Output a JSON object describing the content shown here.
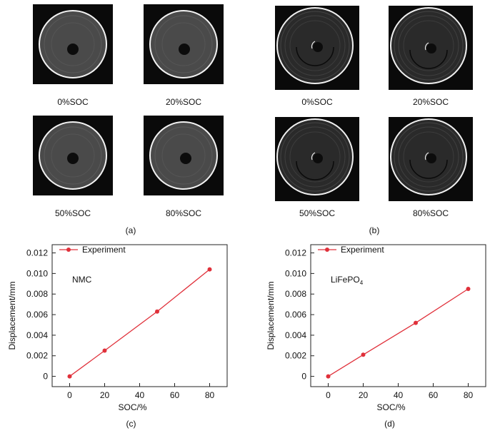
{
  "panel_a": {
    "label": "(a)",
    "images": [
      {
        "caption": "0%SOC"
      },
      {
        "caption": "20%SOC"
      },
      {
        "caption": "50%SOC"
      },
      {
        "caption": "80%SOC"
      }
    ]
  },
  "panel_b": {
    "label": "(b)",
    "images": [
      {
        "caption": "0%SOC"
      },
      {
        "caption": "20%SOC"
      },
      {
        "caption": "50%SOC"
      },
      {
        "caption": "80%SOC"
      }
    ]
  },
  "chart_data": [
    {
      "panel_label": "(c)",
      "type": "line",
      "annotation": "NMC",
      "xlabel": "SOC/%",
      "ylabel": "Displacement/mm",
      "xlim": [
        -10,
        90
      ],
      "ylim": [
        -0.001,
        0.0128
      ],
      "xticks": [
        0,
        20,
        40,
        60,
        80
      ],
      "yticks": [
        0,
        0.002,
        0.004,
        0.006,
        0.008,
        0.01,
        0.012
      ],
      "ytick_labels": [
        "0",
        "0.002",
        "0.004",
        "0.006",
        "0.008",
        "0.010",
        "0.012"
      ],
      "legend": "top-left",
      "series": [
        {
          "name": "Experiment",
          "color": "#e0303a",
          "x": [
            0,
            20,
            50,
            80
          ],
          "y": [
            0.0,
            0.0025,
            0.0063,
            0.0104
          ]
        }
      ]
    },
    {
      "panel_label": "(d)",
      "type": "line",
      "annotation": "LiFePO4",
      "annotation_main": "LiFePO",
      "annotation_sub": "4",
      "xlabel": "SOC/%",
      "ylabel": "Displacement/mm",
      "xlim": [
        -10,
        90
      ],
      "ylim": [
        -0.001,
        0.0128
      ],
      "xticks": [
        0,
        20,
        40,
        60,
        80
      ],
      "yticks": [
        0,
        0.002,
        0.004,
        0.006,
        0.008,
        0.01,
        0.012
      ],
      "ytick_labels": [
        "0",
        "0.002",
        "0.004",
        "0.006",
        "0.008",
        "0.010",
        "0.012"
      ],
      "legend": "top-left",
      "series": [
        {
          "name": "Experiment",
          "color": "#e0303a",
          "x": [
            0,
            20,
            50,
            80
          ],
          "y": [
            0.0,
            0.0021,
            0.0052,
            0.0085
          ]
        }
      ]
    }
  ]
}
